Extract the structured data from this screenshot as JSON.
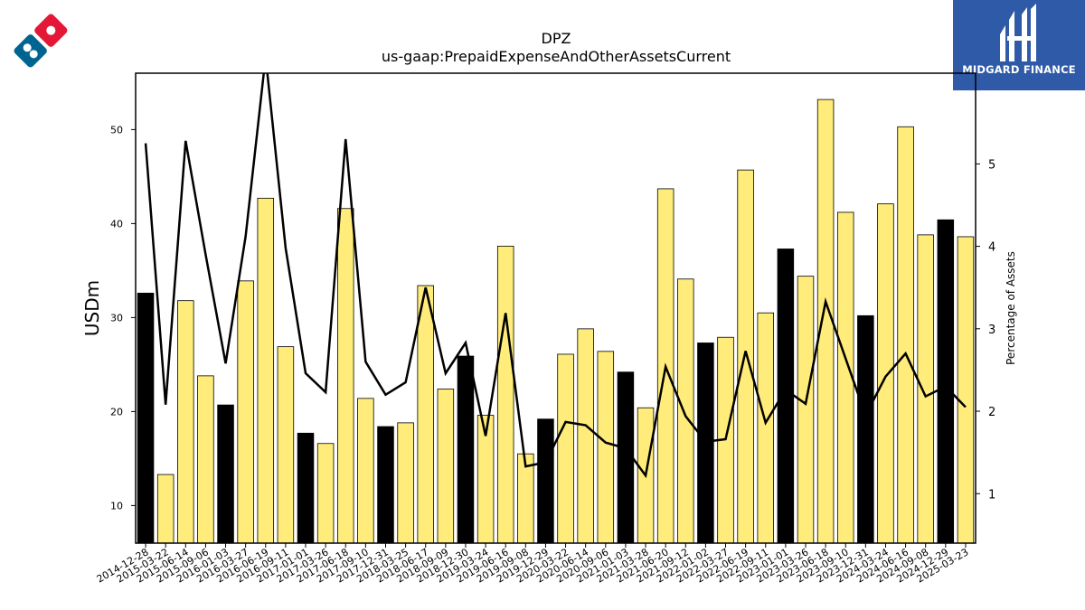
{
  "company_logo": {
    "icon": "dominos-logo-icon"
  },
  "brand": {
    "name": "MIDGARD FINANCE",
    "icon": "midgard-logo-icon",
    "color": "#2f5aa8"
  },
  "chart_data": {
    "type": "bar",
    "title": "DPZ",
    "subtitle": "us-gaap:PrepaidExpenseAndOtherAssetsCurrent",
    "ylabel": "USDm",
    "y2label": "Percentage of Assets",
    "ylim": [
      6,
      56
    ],
    "y2lim": [
      0.4,
      6.1
    ],
    "yticks": [
      10,
      20,
      30,
      40,
      50
    ],
    "y2ticks": [
      1,
      2,
      3,
      4,
      5
    ],
    "categories": [
      "2014-12-28",
      "2015-03-22",
      "2015-06-14",
      "2015-09-06",
      "2016-01-03",
      "2016-03-27",
      "2016-06-19",
      "2016-09-11",
      "2017-01-01",
      "2017-03-26",
      "2017-06-18",
      "2017-09-10",
      "2017-12-31",
      "2018-03-25",
      "2018-06-17",
      "2018-09-09",
      "2018-12-30",
      "2019-03-24",
      "2019-06-16",
      "2019-09-08",
      "2019-12-29",
      "2020-03-22",
      "2020-06-14",
      "2020-09-06",
      "2021-01-03",
      "2021-03-28",
      "2021-06-20",
      "2021-09-12",
      "2022-01-02",
      "2022-03-27",
      "2022-06-19",
      "2022-09-11",
      "2023-01-01",
      "2023-03-26",
      "2023-06-18",
      "2023-09-10",
      "2023-12-31",
      "2024-03-24",
      "2024-06-16",
      "2024-09-08",
      "2024-12-29",
      "2025-03-23"
    ],
    "series": [
      {
        "type": "bar",
        "values": [
          32.6,
          13.3,
          31.8,
          23.8,
          20.7,
          33.9,
          42.7,
          26.9,
          17.7,
          16.6,
          41.6,
          21.4,
          18.4,
          18.8,
          33.4,
          22.4,
          25.9,
          19.6,
          37.6,
          15.5,
          19.2,
          26.1,
          28.8,
          26.4,
          24.2,
          20.4,
          43.7,
          34.1,
          27.3,
          27.9,
          45.7,
          30.5,
          37.3,
          34.4,
          53.2,
          41.2,
          30.2,
          42.1,
          50.3,
          38.8,
          40.4,
          38.6
        ],
        "highlight": [
          true,
          false,
          false,
          false,
          true,
          false,
          false,
          false,
          true,
          false,
          false,
          false,
          true,
          false,
          false,
          false,
          true,
          false,
          false,
          false,
          true,
          false,
          false,
          false,
          true,
          false,
          false,
          false,
          true,
          false,
          false,
          false,
          true,
          false,
          false,
          false,
          true,
          false,
          false,
          false,
          true,
          false
        ],
        "colors": {
          "normal": "#ffec7a",
          "highlight": "#000000",
          "edge": "#000000"
        }
      },
      {
        "type": "line",
        "axis": "right",
        "color": "#000000",
        "values": [
          5.25,
          2.08,
          5.28,
          3.9,
          2.58,
          4.12,
          6.3,
          3.98,
          2.46,
          2.23,
          5.3,
          2.6,
          2.2,
          2.35,
          3.5,
          2.46,
          2.83,
          1.7,
          3.19,
          1.33,
          1.38,
          1.87,
          1.83,
          1.62,
          1.55,
          1.22,
          2.54,
          1.94,
          1.63,
          1.66,
          2.73,
          1.86,
          2.26,
          2.09,
          3.33,
          2.64,
          1.95,
          2.42,
          2.7,
          2.18,
          2.3,
          2.05
        ]
      }
    ]
  }
}
